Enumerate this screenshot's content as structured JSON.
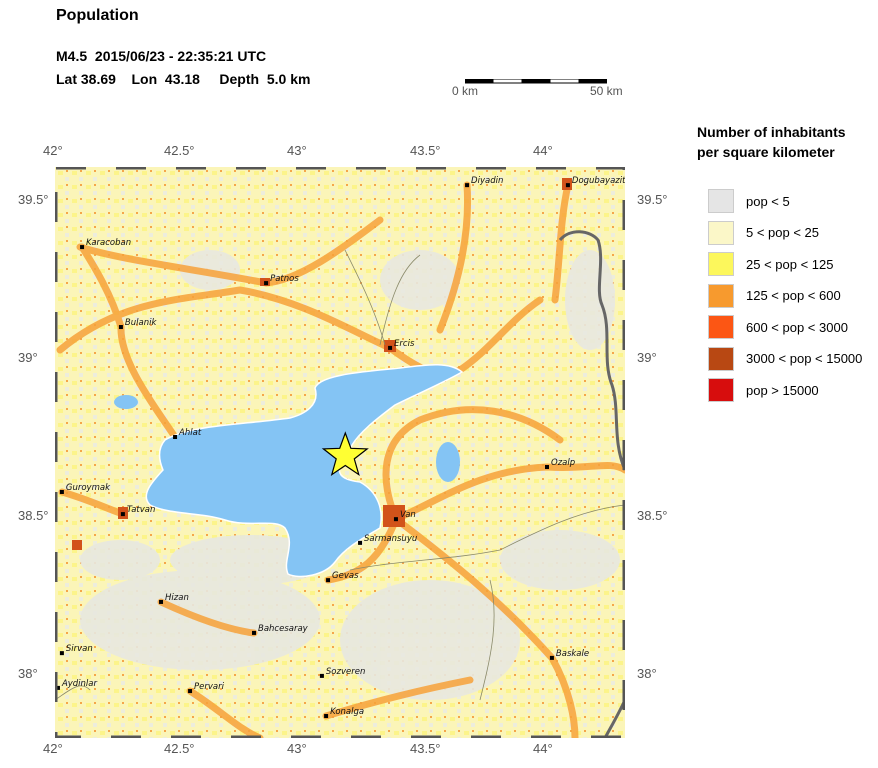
{
  "title": "Population",
  "event": {
    "line1": "M4.5  2015/06/23 - 22:35:21 UTC",
    "line2": "Lat 38.69    Lon  43.18     Depth  5.0 km",
    "lat": 38.69,
    "lon": 43.18
  },
  "scale_bar": {
    "start_label": "0 km",
    "end_label": "50 km"
  },
  "legend": {
    "title_line1": "Number of inhabitants",
    "title_line2": "per square kilometer",
    "items": [
      {
        "label": "pop < 5",
        "color": "#e5e5e5"
      },
      {
        "label": "5 < pop < 25",
        "color": "#fbf7c8"
      },
      {
        "label": "25 < pop < 125",
        "color": "#fcf75c"
      },
      {
        "label": "125 < pop < 600",
        "color": "#f79a2e"
      },
      {
        "label": "600 < pop < 3000",
        "color": "#fc5614"
      },
      {
        "label": "3000 < pop < 15000",
        "color": "#b84813"
      },
      {
        "label": "pop > 15000",
        "color": "#d70d0d"
      }
    ]
  },
  "axes": {
    "lon_ticks": [
      "42°",
      "42.5°",
      "43°",
      "43.5°",
      "44°"
    ],
    "lat_ticks": [
      "39.5°",
      "39°",
      "38.5°",
      "38°"
    ]
  },
  "colors": {
    "water": "#84c4f4",
    "epicenter": "#ffff33",
    "border": "#666666"
  },
  "cities": [
    {
      "name": "Diyadin",
      "lon": 43.675,
      "lat": 39.547
    },
    {
      "name": "Dogubayazit",
      "lon": 44.085,
      "lat": 39.547
    },
    {
      "name": "Karacoban",
      "lon": 42.11,
      "lat": 39.351
    },
    {
      "name": "Patnos",
      "lon": 42.858,
      "lat": 39.237
    },
    {
      "name": "Bulanik",
      "lon": 42.268,
      "lat": 39.098
    },
    {
      "name": "Ercis",
      "lon": 43.362,
      "lat": 39.032
    },
    {
      "name": "Ahlat",
      "lon": 42.488,
      "lat": 38.75
    },
    {
      "name": "Guroymak",
      "lon": 42.028,
      "lat": 38.576
    },
    {
      "name": "Tatvan",
      "lon": 42.276,
      "lat": 38.506
    },
    {
      "name": "Van",
      "lon": 43.386,
      "lat": 38.49
    },
    {
      "name": "Ozalp",
      "lon": 44.0,
      "lat": 38.655
    },
    {
      "name": "Sarmansuyu",
      "lon": 43.24,
      "lat": 38.415
    },
    {
      "name": "Gevas",
      "lon": 43.11,
      "lat": 38.297
    },
    {
      "name": "Hizan",
      "lon": 42.431,
      "lat": 38.228
    },
    {
      "name": "Bahcesaray",
      "lon": 42.809,
      "lat": 38.13
    },
    {
      "name": "Sirvan",
      "lon": 42.028,
      "lat": 38.066
    },
    {
      "name": "Sozveren",
      "lon": 43.085,
      "lat": 37.994
    },
    {
      "name": "Aydinlar",
      "lon": 42.012,
      "lat": 37.956
    },
    {
      "name": "Pervari",
      "lon": 42.549,
      "lat": 37.946
    },
    {
      "name": "Konalga",
      "lon": 43.102,
      "lat": 37.867
    },
    {
      "name": "Baskale",
      "lon": 44.02,
      "lat": 38.051
    }
  ]
}
